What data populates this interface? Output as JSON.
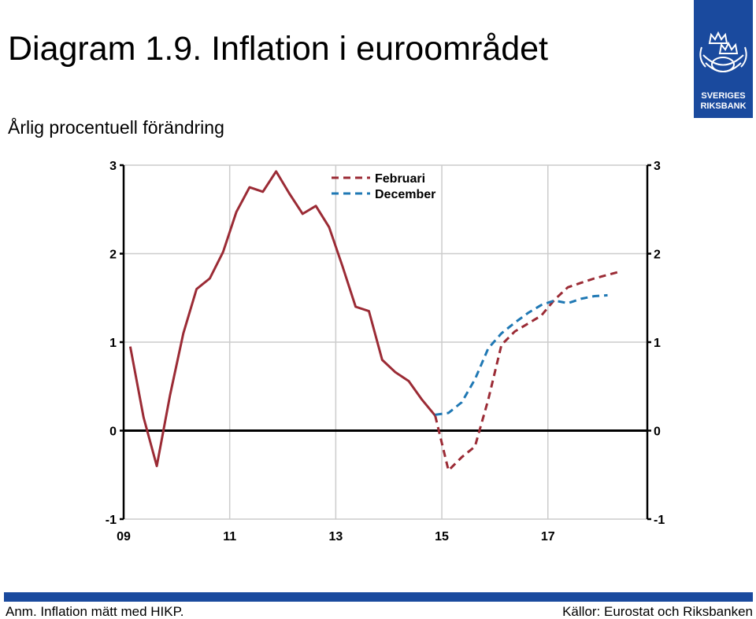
{
  "header": {
    "title": "Diagram 1.9. Inflation i euroområdet",
    "subtitle": "Årlig procentuell förändring"
  },
  "logo": {
    "line1": "SVERIGES",
    "line2": "RIKSBANK",
    "icon": "crowns-emblem-icon"
  },
  "footer": {
    "note": "Anm. Inflation mätt med HIKP.",
    "source": "Källor: Eurostat och Riksbanken"
  },
  "colors": {
    "brand": "#1a4a9e",
    "februari": "#9b2b35",
    "december": "#1f78b4",
    "grid": "#cccccc"
  },
  "chart_data": {
    "type": "line",
    "xlim": [
      2009,
      2018.875
    ],
    "ylim": [
      -1,
      3
    ],
    "x_ticks": [
      2009,
      2011,
      2013,
      2015,
      2017
    ],
    "x_tick_labels": [
      "09",
      "11",
      "13",
      "15",
      "17"
    ],
    "y_ticks": [
      -1,
      0,
      1,
      2,
      3
    ],
    "y_tick_labels": [
      "-1",
      "0",
      "1",
      "2",
      "3"
    ],
    "legend_position": "top-center",
    "grid": true,
    "series": [
      {
        "name": "Februari",
        "color": "#9b2b35",
        "segments": [
          {
            "style": "solid",
            "points": [
              [
                2009.125,
                0.95
              ],
              [
                2009.375,
                0.15
              ],
              [
                2009.625,
                -0.4
              ],
              [
                2009.875,
                0.4
              ],
              [
                2010.125,
                1.1
              ],
              [
                2010.375,
                1.6
              ],
              [
                2010.625,
                1.72
              ],
              [
                2010.875,
                2.02
              ],
              [
                2011.125,
                2.47
              ],
              [
                2011.375,
                2.75
              ],
              [
                2011.625,
                2.7
              ],
              [
                2011.875,
                2.93
              ],
              [
                2012.125,
                2.68
              ],
              [
                2012.375,
                2.45
              ],
              [
                2012.625,
                2.54
              ],
              [
                2012.875,
                2.3
              ],
              [
                2013.125,
                1.86
              ],
              [
                2013.375,
                1.4
              ],
              [
                2013.625,
                1.35
              ],
              [
                2013.875,
                0.8
              ],
              [
                2014.125,
                0.66
              ],
              [
                2014.375,
                0.56
              ],
              [
                2014.625,
                0.35
              ],
              [
                2014.875,
                0.17
              ]
            ]
          },
          {
            "style": "dashed",
            "points": [
              [
                2014.875,
                0.17
              ],
              [
                2015.125,
                -0.45
              ],
              [
                2015.375,
                -0.3
              ],
              [
                2015.625,
                -0.18
              ],
              [
                2015.875,
                0.35
              ],
              [
                2016.125,
                0.97
              ],
              [
                2016.375,
                1.12
              ],
              [
                2016.625,
                1.21
              ],
              [
                2016.875,
                1.3
              ],
              [
                2017.125,
                1.48
              ],
              [
                2017.375,
                1.62
              ],
              [
                2017.625,
                1.67
              ],
              [
                2017.875,
                1.72
              ],
              [
                2018.125,
                1.76
              ],
              [
                2018.375,
                1.8
              ]
            ]
          }
        ]
      },
      {
        "name": "December",
        "color": "#1f78b4",
        "segments": [
          {
            "style": "dashed",
            "points": [
              [
                2014.875,
                0.18
              ],
              [
                2015.125,
                0.2
              ],
              [
                2015.375,
                0.32
              ],
              [
                2015.625,
                0.58
              ],
              [
                2015.875,
                0.93
              ],
              [
                2016.125,
                1.1
              ],
              [
                2016.375,
                1.22
              ],
              [
                2016.625,
                1.33
              ],
              [
                2016.875,
                1.42
              ],
              [
                2017.125,
                1.47
              ],
              [
                2017.375,
                1.44
              ],
              [
                2017.625,
                1.49
              ],
              [
                2017.875,
                1.52
              ],
              [
                2018.125,
                1.53
              ]
            ]
          }
        ]
      }
    ]
  }
}
